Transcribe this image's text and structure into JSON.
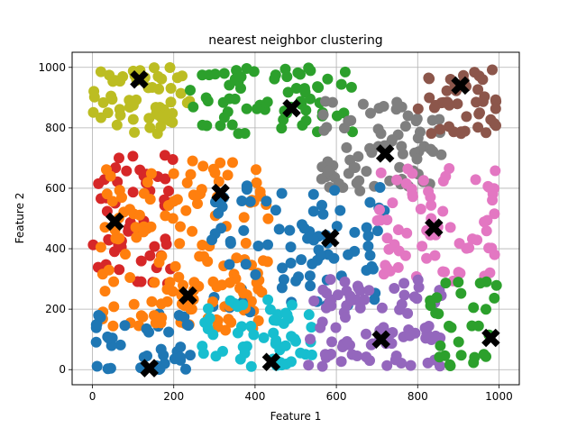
{
  "chart_data": {
    "type": "scatter",
    "title": "nearest neighbor clustering",
    "xlabel": "Feature 1",
    "ylabel": "Feature 2",
    "xlim": [
      -50,
      1050
    ],
    "ylim": [
      -50,
      1050
    ],
    "xticks": [
      0,
      200,
      400,
      600,
      800,
      1000
    ],
    "yticks": [
      0,
      200,
      400,
      600,
      800,
      1000
    ],
    "grid": true,
    "clusters": [
      {
        "color": "#bcbd22",
        "region": {
          "x": [
            0,
            240
          ],
          "y": [
            780,
            1000
          ]
        },
        "count": 60,
        "centroid": [
          115,
          960
        ]
      },
      {
        "color": "#2ca02c",
        "region": {
          "x": [
            230,
            650
          ],
          "y": [
            780,
            1000
          ]
        },
        "count": 70,
        "centroid": [
          490,
          865
        ]
      },
      {
        "color": "#7f7f7f",
        "region": {
          "x": [
            560,
            860
          ],
          "y": [
            590,
            890
          ]
        },
        "count": 75,
        "centroid": [
          720,
          715
        ]
      },
      {
        "color": "#8c564b",
        "region": {
          "x": [
            800,
            1000
          ],
          "y": [
            780,
            1000
          ]
        },
        "count": 45,
        "centroid": [
          905,
          940
        ]
      },
      {
        "color": "#d62728",
        "region": {
          "x": [
            0,
            200
          ],
          "y": [
            280,
            710
          ]
        },
        "count": 55,
        "centroid": [
          55,
          490
        ]
      },
      {
        "color": "#ff7f0e",
        "region": {
          "x": [
            20,
            440
          ],
          "y": [
            130,
            710
          ]
        },
        "count": 130,
        "centroid": [
          315,
          585
        ]
      },
      {
        "color": "#1f77b4",
        "region": {
          "x": [
            290,
            720
          ],
          "y": [
            190,
            620
          ]
        },
        "count": 85,
        "centroid": [
          585,
          435
        ]
      },
      {
        "color": "#e377c2",
        "region": {
          "x": [
            700,
            1000
          ],
          "y": [
            290,
            680
          ]
        },
        "count": 70,
        "centroid": [
          840,
          470
        ]
      },
      {
        "color": "#1f77b4",
        "region": {
          "x": [
            0,
            260
          ],
          "y": [
            0,
            190
          ]
        },
        "count": 40,
        "centroid": [
          140,
          5
        ]
      },
      {
        "color": "#ff7f0e",
        "region": {
          "x": [
            120,
            380
          ],
          "y": [
            150,
            290
          ]
        },
        "count": 25,
        "centroid": [
          235,
          245
        ]
      },
      {
        "color": "#17becf",
        "region": {
          "x": [
            250,
            540
          ],
          "y": [
            10,
            240
          ]
        },
        "count": 55,
        "centroid": [
          440,
          25
        ]
      },
      {
        "color": "#9467bd",
        "region": {
          "x": [
            530,
            860
          ],
          "y": [
            10,
            300
          ]
        },
        "count": 90,
        "centroid": [
          710,
          100
        ]
      },
      {
        "color": "#2ca02c",
        "region": {
          "x": [
            820,
            1000
          ],
          "y": [
            10,
            300
          ]
        },
        "count": 30,
        "centroid": [
          980,
          105
        ]
      }
    ],
    "centroid_marker": "X"
  }
}
